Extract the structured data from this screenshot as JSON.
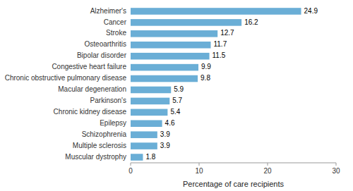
{
  "chart_data": {
    "type": "bar",
    "orientation": "horizontal",
    "categories": [
      "Muscular dystrophy",
      "Multiple sclerosis",
      "Schizophrenia",
      "Epilepsy",
      "Chronic kidney disease",
      "Parkinson's",
      "Macular degeneration",
      "Chronic obstructive pulmonary disease",
      "Congestive heart failure",
      "Bipolar disorder",
      "Osteoarthritis",
      "Stroke",
      "Cancer",
      "Alzheimer's"
    ],
    "values": [
      1.8,
      3.9,
      3.9,
      4.6,
      5.4,
      5.7,
      5.9,
      9.8,
      9.9,
      11.5,
      11.7,
      12.7,
      16.2,
      24.9
    ],
    "color": "#6aaed6",
    "xlabel": "Percentage of care recipients",
    "xlim": [
      0,
      30
    ],
    "xticks": [
      0,
      10,
      20,
      30
    ],
    "data_labels": true,
    "grid": false
  }
}
